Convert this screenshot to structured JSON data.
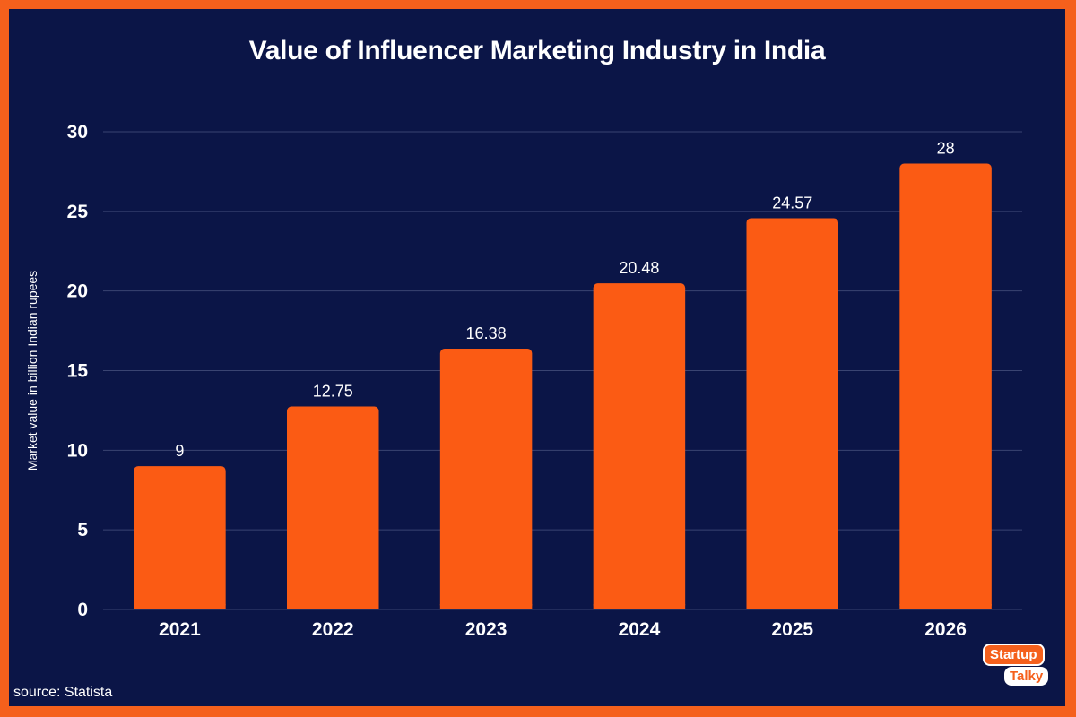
{
  "colors": {
    "background": "#0B1547",
    "border": "#F5601C",
    "bar": "#FB5B14",
    "gridline": "#3A4472",
    "text": "#FFFFFF"
  },
  "chart_data": {
    "type": "bar",
    "title": "Value of Influencer Marketing Industry in India",
    "xlabel": "",
    "ylabel": "Market value in billion Indian rupees",
    "categories": [
      "2021",
      "2022",
      "2023",
      "2024",
      "2025",
      "2026"
    ],
    "values": [
      9,
      12.75,
      16.38,
      20.48,
      24.57,
      28
    ],
    "data_labels": [
      "9",
      "12.75",
      "16.38",
      "20.48",
      "24.57",
      "28"
    ],
    "ylim": [
      0,
      30
    ],
    "yticks": [
      0,
      5,
      10,
      15,
      20,
      25,
      30
    ],
    "grid": true,
    "legend": "none"
  },
  "footer": {
    "source": "source: Statista"
  },
  "logo": {
    "line1": "Startup",
    "line2": "Talky"
  }
}
